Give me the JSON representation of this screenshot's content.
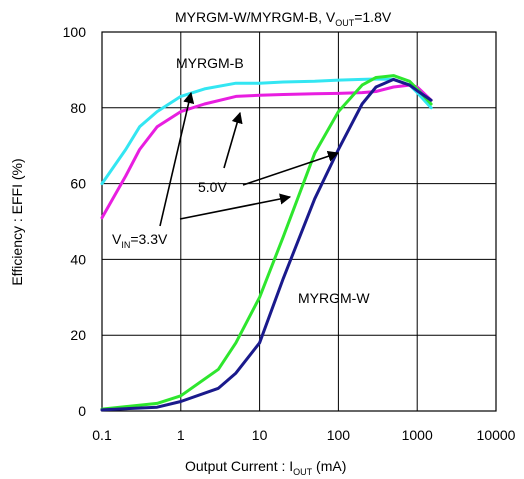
{
  "chart_data": {
    "type": "line",
    "title_parts": [
      "MYRGM-W/MYRGM-B, V",
      "OUT",
      "=1.8V"
    ],
    "xlabel_parts": [
      "Output Current : I",
      "OUT",
      " (mA)"
    ],
    "ylabel": "Efficiency : EFFI (%)",
    "xscale": "log",
    "xlim": [
      0.1,
      10000
    ],
    "ylim": [
      0,
      100
    ],
    "x_ticks": [
      0.1,
      1,
      10,
      100,
      1000,
      10000
    ],
    "x_tick_labels": [
      "0.1",
      "1",
      "10",
      "100",
      "1000",
      "10000"
    ],
    "y_ticks": [
      0,
      20,
      40,
      60,
      80,
      100
    ],
    "y_tick_labels": [
      "0",
      "20",
      "40",
      "60",
      "80",
      "100"
    ],
    "grid": true,
    "series": [
      {
        "color": "#33e6f2",
        "x": [
          0.1,
          0.2,
          0.3,
          0.5,
          1,
          2,
          5,
          10,
          20,
          50,
          100,
          200,
          300,
          500,
          800,
          1000,
          1500
        ],
        "y": [
          60,
          69,
          75,
          79,
          83,
          85,
          86.5,
          86.5,
          86.8,
          87,
          87.3,
          87.5,
          87.6,
          87.5,
          86,
          84,
          80
        ]
      },
      {
        "color": "#e81ee0",
        "x": [
          0.1,
          0.2,
          0.3,
          0.5,
          1,
          2,
          5,
          10,
          20,
          50,
          100,
          200,
          300,
          500,
          800,
          1000,
          1500
        ],
        "y": [
          51,
          62,
          69,
          75,
          79,
          81,
          83,
          83.3,
          83.5,
          83.7,
          83.8,
          84,
          84.3,
          85.5,
          86,
          85.5,
          82
        ]
      },
      {
        "color": "#2ee62e",
        "x": [
          0.1,
          0.5,
          1,
          3,
          5,
          10,
          20,
          50,
          100,
          200,
          300,
          500,
          800,
          1000,
          1500
        ],
        "y": [
          0.5,
          2,
          4,
          11,
          18,
          30,
          46,
          68,
          79,
          86,
          88,
          88.5,
          87,
          85,
          81
        ]
      },
      {
        "color": "#1a1a8c",
        "x": [
          0.1,
          0.5,
          1,
          3,
          5,
          10,
          20,
          50,
          100,
          200,
          300,
          500,
          800,
          1000,
          1500
        ],
        "y": [
          0.3,
          1,
          2.5,
          6,
          10,
          18,
          35,
          56,
          69,
          81,
          85.5,
          87.5,
          86,
          84.5,
          82
        ]
      }
    ],
    "annotations": [
      {
        "kind": "plain",
        "text": "MYRGM-B"
      },
      {
        "kind": "plain",
        "text": "MYRGM-W"
      },
      {
        "kind": "plain",
        "text": "5.0V"
      },
      {
        "kind": "vin",
        "parts": [
          "V",
          "IN",
          "=3.3V"
        ]
      }
    ]
  }
}
